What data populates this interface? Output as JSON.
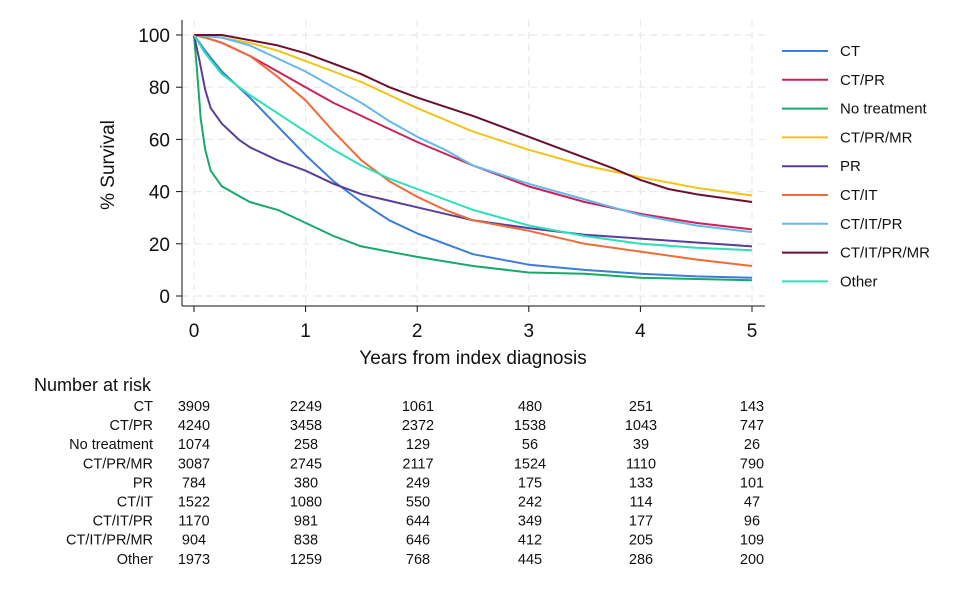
{
  "chart_data": {
    "type": "line",
    "title": "",
    "xlabel": "Years from index diagnosis",
    "ylabel": "% Survival",
    "xlim": [
      0,
      5
    ],
    "ylim": [
      0,
      100
    ],
    "xticks": [
      0,
      1,
      2,
      3,
      4,
      5
    ],
    "yticks": [
      0,
      20,
      40,
      60,
      80,
      100
    ],
    "grid": true,
    "legend_position": "right",
    "series": [
      {
        "name": "CT",
        "color": "#3b7dd8",
        "points": [
          [
            0,
            100
          ],
          [
            0.1,
            94
          ],
          [
            0.25,
            86
          ],
          [
            0.5,
            76
          ],
          [
            0.75,
            65
          ],
          [
            1,
            54
          ],
          [
            1.25,
            44
          ],
          [
            1.5,
            36
          ],
          [
            1.75,
            29
          ],
          [
            2,
            24
          ],
          [
            2.5,
            16
          ],
          [
            3,
            12
          ],
          [
            3.5,
            10
          ],
          [
            4,
            8.5
          ],
          [
            4.5,
            7.5
          ],
          [
            5,
            7
          ]
        ]
      },
      {
        "name": "CT/PR",
        "color": "#c8245a",
        "points": [
          [
            0,
            100
          ],
          [
            0.1,
            99
          ],
          [
            0.25,
            97
          ],
          [
            0.5,
            92
          ],
          [
            0.75,
            86
          ],
          [
            1,
            80
          ],
          [
            1.25,
            74
          ],
          [
            1.5,
            69
          ],
          [
            1.75,
            64
          ],
          [
            2,
            59
          ],
          [
            2.5,
            50
          ],
          [
            3,
            42
          ],
          [
            3.5,
            36
          ],
          [
            4,
            31.5
          ],
          [
            4.5,
            28
          ],
          [
            5,
            25.5
          ]
        ]
      },
      {
        "name": "No treatment",
        "color": "#17a96a",
        "points": [
          [
            0,
            100
          ],
          [
            0.03,
            85
          ],
          [
            0.06,
            68
          ],
          [
            0.1,
            56
          ],
          [
            0.15,
            48
          ],
          [
            0.25,
            42
          ],
          [
            0.5,
            36
          ],
          [
            0.75,
            33
          ],
          [
            1,
            28
          ],
          [
            1.25,
            23
          ],
          [
            1.5,
            19
          ],
          [
            2,
            15
          ],
          [
            2.5,
            11.5
          ],
          [
            3,
            9
          ],
          [
            3.5,
            8.5
          ],
          [
            4,
            7
          ],
          [
            5,
            6
          ]
        ]
      },
      {
        "name": "CT/PR/MR",
        "color": "#f2c318",
        "points": [
          [
            0,
            100
          ],
          [
            0.25,
            99
          ],
          [
            0.5,
            97
          ],
          [
            0.75,
            94
          ],
          [
            1,
            90
          ],
          [
            1.25,
            86
          ],
          [
            1.5,
            82
          ],
          [
            1.75,
            77
          ],
          [
            2,
            72
          ],
          [
            2.5,
            63
          ],
          [
            3,
            56
          ],
          [
            3.5,
            50
          ],
          [
            4,
            45.5
          ],
          [
            4.5,
            41.5
          ],
          [
            5,
            38.5
          ]
        ]
      },
      {
        "name": "PR",
        "color": "#5a3d99",
        "points": [
          [
            0,
            100
          ],
          [
            0.05,
            90
          ],
          [
            0.1,
            79
          ],
          [
            0.15,
            72
          ],
          [
            0.25,
            66
          ],
          [
            0.4,
            60
          ],
          [
            0.5,
            57
          ],
          [
            0.75,
            52
          ],
          [
            1,
            48
          ],
          [
            1.25,
            43
          ],
          [
            1.5,
            39
          ],
          [
            2,
            34
          ],
          [
            2.5,
            29
          ],
          [
            3,
            26
          ],
          [
            3.5,
            23.5
          ],
          [
            4,
            22
          ],
          [
            4.5,
            20.5
          ],
          [
            5,
            19
          ]
        ]
      },
      {
        "name": "CT/IT",
        "color": "#ee6b3a",
        "points": [
          [
            0,
            100
          ],
          [
            0.1,
            99
          ],
          [
            0.25,
            97
          ],
          [
            0.5,
            92
          ],
          [
            0.75,
            84
          ],
          [
            1,
            75
          ],
          [
            1.25,
            63
          ],
          [
            1.5,
            52
          ],
          [
            1.75,
            44
          ],
          [
            2,
            38
          ],
          [
            2.25,
            33
          ],
          [
            2.5,
            29
          ],
          [
            3,
            25
          ],
          [
            3.5,
            20
          ],
          [
            4,
            17
          ],
          [
            4.5,
            14
          ],
          [
            5,
            11.5
          ]
        ]
      },
      {
        "name": "CT/IT/PR",
        "color": "#66b8ec",
        "points": [
          [
            0,
            100
          ],
          [
            0.25,
            99
          ],
          [
            0.5,
            96
          ],
          [
            0.75,
            91
          ],
          [
            1,
            86
          ],
          [
            1.25,
            80
          ],
          [
            1.5,
            74
          ],
          [
            1.75,
            67
          ],
          [
            2,
            61
          ],
          [
            2.25,
            56
          ],
          [
            2.5,
            50
          ],
          [
            3,
            43
          ],
          [
            3.5,
            37
          ],
          [
            4,
            31
          ],
          [
            4.5,
            27
          ],
          [
            5,
            24.5
          ]
        ]
      },
      {
        "name": "CT/IT/PR/MR",
        "color": "#6b0f2e",
        "points": [
          [
            0,
            100
          ],
          [
            0.25,
            100
          ],
          [
            0.5,
            98
          ],
          [
            0.75,
            96
          ],
          [
            1,
            93
          ],
          [
            1.25,
            89
          ],
          [
            1.5,
            85
          ],
          [
            1.75,
            80
          ],
          [
            2,
            76
          ],
          [
            2.5,
            69
          ],
          [
            3,
            61
          ],
          [
            3.5,
            53
          ],
          [
            3.75,
            49
          ],
          [
            4,
            44.5
          ],
          [
            4.25,
            41
          ],
          [
            4.5,
            39
          ],
          [
            4.75,
            37.5
          ],
          [
            5,
            36
          ]
        ]
      },
      {
        "name": "Other",
        "color": "#2ee0b8",
        "points": [
          [
            0,
            100
          ],
          [
            0.1,
            93
          ],
          [
            0.25,
            85
          ],
          [
            0.5,
            77
          ],
          [
            0.75,
            70
          ],
          [
            1,
            63
          ],
          [
            1.25,
            56
          ],
          [
            1.5,
            50
          ],
          [
            1.75,
            45
          ],
          [
            2,
            41
          ],
          [
            2.5,
            33
          ],
          [
            3,
            27
          ],
          [
            3.5,
            23
          ],
          [
            4,
            20
          ],
          [
            4.5,
            18.5
          ],
          [
            5,
            17.5
          ]
        ]
      }
    ]
  },
  "risk_table": {
    "title": "Number at risk",
    "rows": [
      {
        "label": "CT",
        "values": [
          "3909",
          "2249",
          "1061",
          "480",
          "251",
          "143"
        ]
      },
      {
        "label": "CT/PR",
        "values": [
          "4240",
          "3458",
          "2372",
          "1538",
          "1043",
          "747"
        ]
      },
      {
        "label": "No treatment",
        "values": [
          "1074",
          "258",
          "129",
          "56",
          "39",
          "26"
        ]
      },
      {
        "label": "CT/PR/MR",
        "values": [
          "3087",
          "2745",
          "2117",
          "1524",
          "1110",
          "790"
        ]
      },
      {
        "label": "PR",
        "values": [
          "784",
          "380",
          "249",
          "175",
          "133",
          "101"
        ]
      },
      {
        "label": "CT/IT",
        "values": [
          "1522",
          "1080",
          "550",
          "242",
          "114",
          "47"
        ]
      },
      {
        "label": "CT/IT/PR",
        "values": [
          "1170",
          "981",
          "644",
          "349",
          "177",
          "96"
        ]
      },
      {
        "label": "CT/IT/PR/MR",
        "values": [
          "904",
          "838",
          "646",
          "412",
          "205",
          "109"
        ]
      },
      {
        "label": "Other",
        "values": [
          "1973",
          "1259",
          "768",
          "445",
          "286",
          "200"
        ]
      }
    ]
  }
}
